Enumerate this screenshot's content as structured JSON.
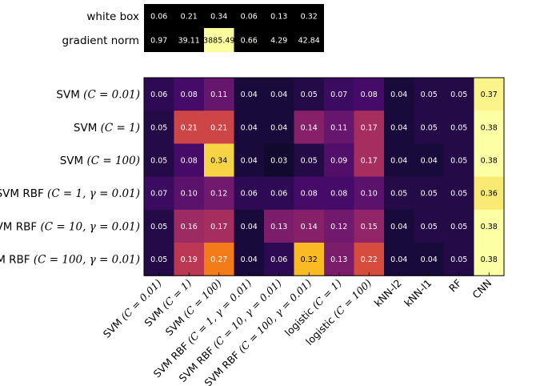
{
  "chart_data": [
    {
      "type": "heatmap",
      "rows": [
        {
          "label": "white box",
          "math": "",
          "values": [
            0.06,
            0.21,
            0.34,
            0.06,
            0.13,
            0.32
          ],
          "display": [
            "0.06",
            "0.21",
            "0.34",
            "0.06",
            "0.13",
            "0.32"
          ]
        },
        {
          "label": "gradient norm",
          "math": "",
          "values": [
            0.97,
            39.11,
            3885.49,
            0.66,
            4.29,
            42.84
          ],
          "display": [
            "0.97",
            "39.11",
            "3885.49",
            "0.66",
            "4.29",
            "42.84"
          ]
        }
      ],
      "highlight_colors": {
        "3885.49": "#fcfd9f"
      }
    },
    {
      "type": "heatmap",
      "colormap": "inferno",
      "vmin": 0.0,
      "vmax": 0.38,
      "rows": [
        {
          "label": "SVM ",
          "math": "(C = 0.01)",
          "values": [
            0.06,
            0.08,
            0.11,
            0.04,
            0.04,
            0.05,
            0.07,
            0.08,
            0.04,
            0.05,
            0.05,
            0.37
          ]
        },
        {
          "label": "SVM ",
          "math": "(C = 1)",
          "values": [
            0.05,
            0.21,
            0.21,
            0.04,
            0.04,
            0.14,
            0.11,
            0.17,
            0.04,
            0.05,
            0.05,
            0.38
          ]
        },
        {
          "label": "SVM ",
          "math": "(C = 100)",
          "values": [
            0.05,
            0.08,
            0.34,
            0.04,
            0.03,
            0.05,
            0.09,
            0.17,
            0.04,
            0.04,
            0.05,
            0.38
          ]
        },
        {
          "label": "SVM RBF ",
          "math": "(C = 1, γ = 0.01)",
          "values": [
            0.07,
            0.1,
            0.12,
            0.06,
            0.06,
            0.08,
            0.08,
            0.1,
            0.05,
            0.05,
            0.05,
            0.36
          ]
        },
        {
          "label": "SVM RBF ",
          "math": "(C = 10, γ = 0.01)",
          "values": [
            0.05,
            0.16,
            0.17,
            0.04,
            0.13,
            0.14,
            0.12,
            0.15,
            0.04,
            0.05,
            0.05,
            0.38
          ]
        },
        {
          "label": "SVM RBF ",
          "math": "(C = 100, γ = 0.01)",
          "values": [
            0.05,
            0.19,
            0.27,
            0.04,
            0.06,
            0.32,
            0.13,
            0.22,
            0.04,
            0.04,
            0.05,
            0.38
          ]
        }
      ],
      "columns": [
        {
          "label": "SVM ",
          "math": "(C = 0.01)"
        },
        {
          "label": "SVM ",
          "math": "(C = 1)"
        },
        {
          "label": "SVM ",
          "math": "(C = 100)"
        },
        {
          "label": "SVM RBF ",
          "math": "(C = 1, γ = 0.01)"
        },
        {
          "label": "SVM RBF ",
          "math": "(C = 10, γ = 0.01)"
        },
        {
          "label": "SVM RBF ",
          "math": "(C = 100, γ = 0.01)"
        },
        {
          "label": "logistic ",
          "math": "(C = 1)"
        },
        {
          "label": "logistic ",
          "math": "(C = 100)"
        },
        {
          "label": "kNN-l2",
          "math": ""
        },
        {
          "label": "kNN-l1",
          "math": ""
        },
        {
          "label": "RF",
          "math": ""
        },
        {
          "label": "CNN",
          "math": ""
        }
      ]
    }
  ]
}
